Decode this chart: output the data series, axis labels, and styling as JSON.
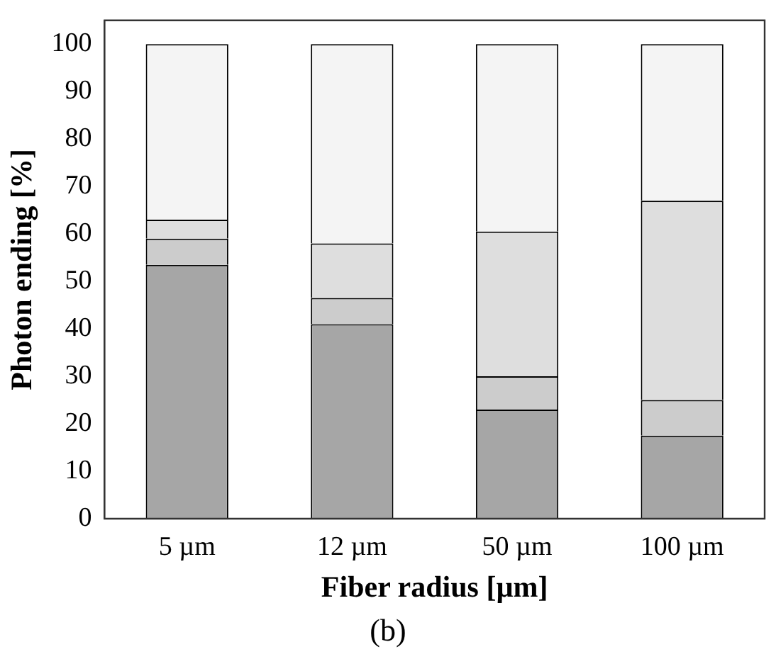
{
  "chart_data": {
    "type": "bar",
    "stacked": true,
    "xlabel": "Fiber radius [µm]",
    "ylabel": "Photon ending [%]",
    "annotations": [
      "(b)"
    ],
    "categories": [
      "5 µm",
      "12 µm",
      "50 µm",
      "100 µm"
    ],
    "series": [
      {
        "color": "#a6a6a6",
        "values": [
          53.5,
          41,
          23,
          17.5
        ]
      },
      {
        "color": "#cccccc",
        "values": [
          5.5,
          5.5,
          7,
          7.5
        ]
      },
      {
        "color": "#dedede",
        "values": [
          4,
          11.5,
          30.5,
          42
        ]
      },
      {
        "color": "#f4f4f4",
        "values": [
          37,
          42,
          39.5,
          33
        ]
      }
    ],
    "ylim": [
      0,
      105
    ],
    "yticks": [
      0,
      10,
      20,
      30,
      40,
      50,
      60,
      70,
      80,
      90,
      100
    ],
    "grid": false,
    "legend": false
  }
}
